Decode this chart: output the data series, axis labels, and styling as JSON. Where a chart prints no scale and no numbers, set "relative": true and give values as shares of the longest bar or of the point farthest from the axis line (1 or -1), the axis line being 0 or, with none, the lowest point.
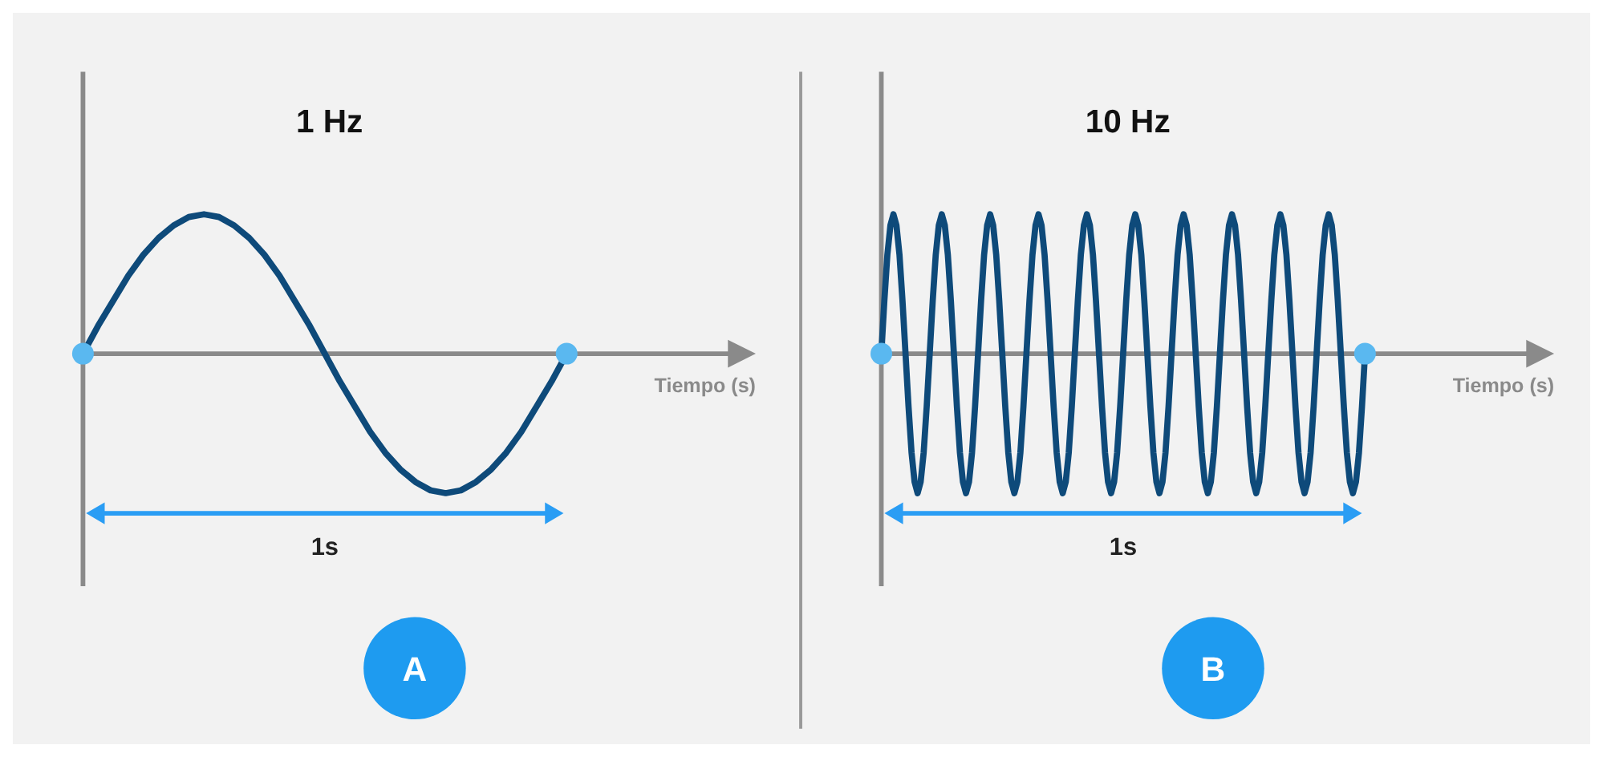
{
  "chart_data": [
    {
      "type": "line",
      "title": "1 Hz",
      "xlabel": "Tiempo (s)",
      "relative": true,
      "categories": [
        null,
        null,
        null,
        null,
        null,
        null,
        null,
        null,
        null,
        null,
        null,
        null,
        null,
        null,
        null,
        null,
        null,
        null,
        null,
        null,
        null,
        null,
        null,
        null,
        null,
        null,
        null,
        null,
        null,
        null,
        null,
        null,
        null
      ],
      "series": [
        {
          "color": "#0e4a7a",
          "values": [
            0,
            0.2,
            0.38,
            0.56,
            0.71,
            0.83,
            0.92,
            0.98,
            1,
            0.98,
            0.92,
            0.83,
            0.71,
            0.56,
            0.38,
            0.2,
            0,
            -0.2,
            -0.38,
            -0.56,
            -0.71,
            -0.83,
            -0.92,
            -0.98,
            -1,
            -0.98,
            -0.92,
            -0.83,
            -0.71,
            -0.56,
            -0.38,
            -0.2,
            0
          ]
        }
      ],
      "annotations": [
        "1s",
        "A"
      ]
    },
    {
      "type": "line",
      "title": "10 Hz",
      "xlabel": "Tiempo (s)",
      "relative": true,
      "categories": [
        null,
        null,
        null,
        null,
        null,
        null,
        null,
        null,
        null,
        null,
        null,
        null,
        null,
        null,
        null,
        null,
        null,
        null,
        null,
        null,
        null,
        null,
        null,
        null,
        null,
        null,
        null,
        null,
        null,
        null,
        null,
        null,
        null,
        null,
        null,
        null,
        null,
        null,
        null,
        null,
        null,
        null,
        null,
        null,
        null,
        null,
        null,
        null,
        null,
        null,
        null,
        null,
        null,
        null,
        null,
        null,
        null,
        null,
        null,
        null,
        null,
        null,
        null,
        null,
        null,
        null,
        null,
        null,
        null,
        null,
        null,
        null,
        null,
        null,
        null,
        null,
        null,
        null,
        null,
        null,
        null,
        null,
        null,
        null,
        null,
        null,
        null,
        null,
        null,
        null,
        null,
        null,
        null,
        null,
        null,
        null,
        null,
        null,
        null,
        null,
        null,
        null,
        null,
        null,
        null,
        null,
        null,
        null,
        null,
        null,
        null,
        null,
        null,
        null,
        null,
        null,
        null,
        null,
        null,
        null,
        null,
        null,
        null,
        null,
        null,
        null,
        null,
        null,
        null,
        null,
        null,
        null,
        null,
        null,
        null,
        null,
        null,
        null,
        null,
        null,
        null,
        null,
        null,
        null,
        null,
        null,
        null,
        null,
        null,
        null,
        null,
        null,
        null,
        null,
        null,
        null,
        null,
        null,
        null,
        null,
        null
      ],
      "series": [
        {
          "color": "#0e4a7a",
          "values": [
            0,
            0.38,
            0.71,
            0.92,
            1,
            0.92,
            0.71,
            0.38,
            0,
            -0.38,
            -0.71,
            -0.92,
            -1,
            -0.92,
            -0.71,
            -0.38,
            0,
            0.38,
            0.71,
            0.92,
            1,
            0.92,
            0.71,
            0.38,
            0,
            -0.38,
            -0.71,
            -0.92,
            -1,
            -0.92,
            -0.71,
            -0.38,
            0,
            0.38,
            0.71,
            0.92,
            1,
            0.92,
            0.71,
            0.38,
            0,
            -0.38,
            -0.71,
            -0.92,
            -1,
            -0.92,
            -0.71,
            -0.38,
            0,
            0.38,
            0.71,
            0.92,
            1,
            0.92,
            0.71,
            0.38,
            0,
            -0.38,
            -0.71,
            -0.92,
            -1,
            -0.92,
            -0.71,
            -0.38,
            0,
            0.38,
            0.71,
            0.92,
            1,
            0.92,
            0.71,
            0.38,
            0,
            -0.38,
            -0.71,
            -0.92,
            -1,
            -0.92,
            -0.71,
            -0.38,
            0,
            0.38,
            0.71,
            0.92,
            1,
            0.92,
            0.71,
            0.38,
            0,
            -0.38,
            -0.71,
            -0.92,
            -1,
            -0.92,
            -0.71,
            -0.38,
            0,
            0.38,
            0.71,
            0.92,
            1,
            0.92,
            0.71,
            0.38,
            0,
            -0.38,
            -0.71,
            -0.92,
            -1,
            -0.92,
            -0.71,
            -0.38,
            0,
            0.38,
            0.71,
            0.92,
            1,
            0.92,
            0.71,
            0.38,
            0,
            -0.38,
            -0.71,
            -0.92,
            -1,
            -0.92,
            -0.71,
            -0.38,
            0,
            0.38,
            0.71,
            0.92,
            1,
            0.92,
            0.71,
            0.38,
            0,
            -0.38,
            -0.71,
            -0.92,
            -1,
            -0.92,
            -0.71,
            -0.38,
            0,
            0.38,
            0.71,
            0.92,
            1,
            0.92,
            0.71,
            0.38,
            0,
            -0.38,
            -0.71,
            -0.92,
            -1,
            -0.92,
            -0.71,
            -0.38,
            0
          ]
        }
      ],
      "annotations": [
        "1s",
        "B"
      ]
    }
  ]
}
